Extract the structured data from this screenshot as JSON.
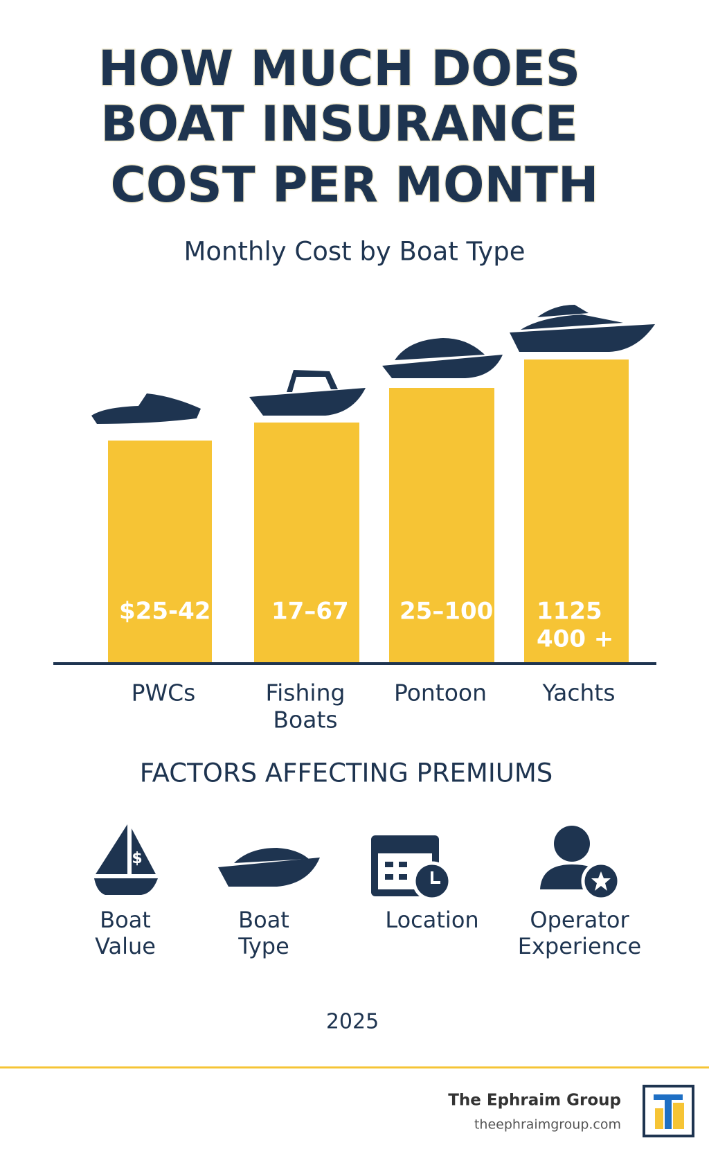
{
  "header": {
    "title_lines": [
      "HOW MUCH DOES",
      "BOAT INSURANCE",
      "COST PER MONTH"
    ],
    "subtitle": "Monthly Cost by Boat Type"
  },
  "bars": [
    {
      "price_lines": [
        "$25-42"
      ],
      "label_lines": [
        "PWCs"
      ]
    },
    {
      "price_lines": [
        "17–67"
      ],
      "label_lines": [
        "Fishing",
        "Boats"
      ]
    },
    {
      "price_lines": [
        "25–100"
      ],
      "label_lines": [
        "Pontoon"
      ]
    },
    {
      "price_lines": [
        "1125",
        "400 +"
      ],
      "label_lines": [
        "Yachts"
      ]
    }
  ],
  "factors": {
    "heading": "FACTORS AFFECTING PREMIUMS",
    "items": [
      [
        "Boat",
        "Value"
      ],
      [
        "Boat",
        "Type"
      ],
      [
        "Location"
      ],
      [
        "Operator",
        "Experience"
      ]
    ]
  },
  "year": "2025",
  "footer": {
    "company": "The Ephraim Group",
    "url": "theephraimgroup.com"
  }
}
